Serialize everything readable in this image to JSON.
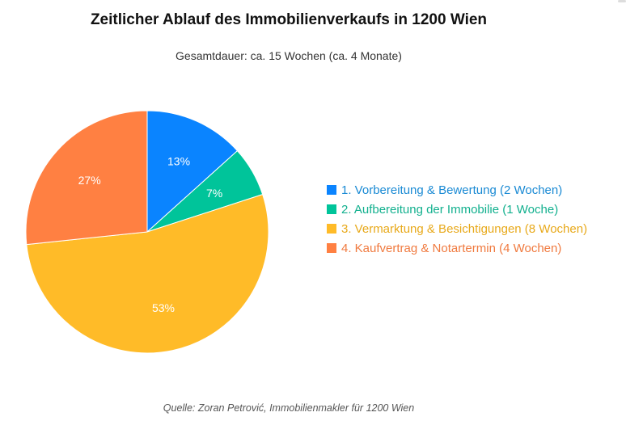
{
  "chart_data": {
    "type": "pie",
    "title": "Zeitlicher Ablauf des Immobilienverkaufs in 1200 Wien",
    "subtitle": "Gesamtdauer: ca. 15 Wochen (ca. 4 Monate)",
    "source": "Quelle: Zoran Petrović, Immobilienmakler für 1200 Wien",
    "legend_position": "right",
    "slices": [
      {
        "label": "1. Vorbereitung & Bewertung (2 Wochen)",
        "value": 2,
        "percent_label": "13%",
        "color": "#0a84ff",
        "legend_color": "#1a8ad4"
      },
      {
        "label": "2. Aufbereitung der Immobilie (1 Woche)",
        "value": 1,
        "percent_label": "7%",
        "color": "#00c49a",
        "legend_color": "#12b08e"
      },
      {
        "label": "3. Vermarktung & Besichtigungen (8 Wochen)",
        "value": 8,
        "percent_label": "53%",
        "color": "#ffbb28",
        "legend_color": "#e8a91a"
      },
      {
        "label": "4. Kaufvertrag & Notartermin (4 Wochen)",
        "value": 4,
        "percent_label": "27%",
        "color": "#ff8042",
        "legend_color": "#f07a3f"
      }
    ]
  }
}
